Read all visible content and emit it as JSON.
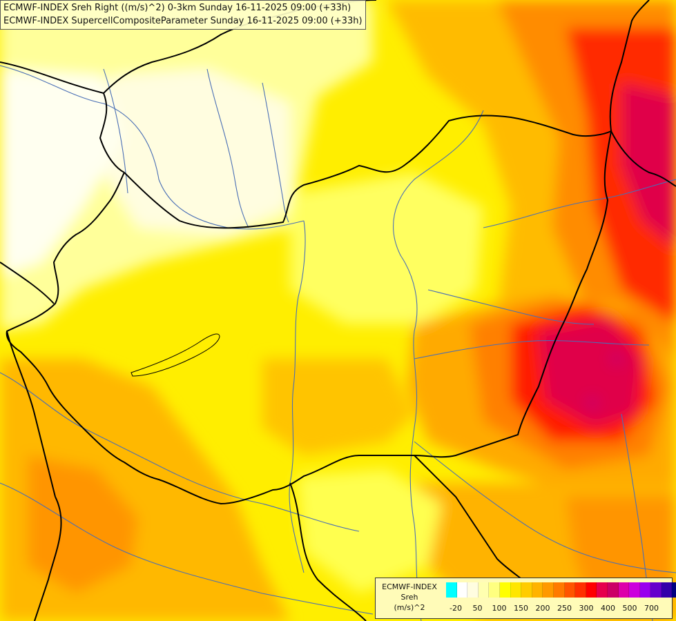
{
  "title": {
    "line1": "ECMWF-INDEX Sreh Right ((m/s)^2) 0-3km Sunday 16-11-2025 09:00 (+33h)",
    "line2": "ECMWF-INDEX SupercellCompositeParameter Sunday 16-11-2025 09:00 (+33h)"
  },
  "legend": {
    "line1": "ECMWF-INDEX",
    "line2": "Sreh",
    "line3": "(m/s)^2",
    "colors": [
      "#00ffff",
      "#ffffff",
      "#fffde0",
      "#ffffb0",
      "#ffff80",
      "#ffff00",
      "#ffe600",
      "#ffcc00",
      "#ffb300",
      "#ff9900",
      "#ff7a00",
      "#ff5500",
      "#ff3000",
      "#ff0000",
      "#e6004d",
      "#cc0066",
      "#dd00aa",
      "#cc00dd",
      "#9900ee",
      "#6600cc",
      "#3300aa",
      "#000080"
    ],
    "ticks": [
      "-20",
      "50",
      "100",
      "150",
      "200",
      "250",
      "300",
      "400",
      "500",
      "700"
    ]
  },
  "colors": {
    "land_base": "#ffee00",
    "pale": "#ffffc8",
    "light_yellow": "#ffff80",
    "orange": "#ffb300",
    "dark_orange": "#ff8c00",
    "red": "#ff2a00",
    "crimson": "#e0004a",
    "border": "#000000",
    "river": "#4a6fb5"
  }
}
